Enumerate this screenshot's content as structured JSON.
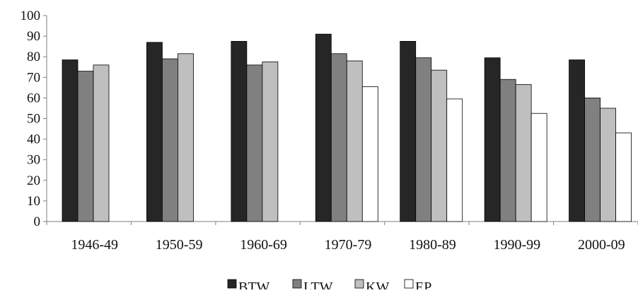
{
  "chart_data": {
    "type": "bar",
    "title": "",
    "xlabel": "",
    "ylabel": "",
    "ylim": [
      0,
      100
    ],
    "yticks": [
      0,
      10,
      20,
      30,
      40,
      50,
      60,
      70,
      80,
      90,
      100
    ],
    "grid": false,
    "legend_position": "bottom",
    "categories": [
      "1946-49",
      "1950-59",
      "1960-69",
      "1970-79",
      "1980-89",
      "1990-99",
      "2000-09"
    ],
    "series": [
      {
        "name": "BTW",
        "color": "#262626",
        "values": [
          78.5,
          87.0,
          87.5,
          91.0,
          87.5,
          79.5,
          78.5
        ]
      },
      {
        "name": "LTW",
        "color": "#808080",
        "values": [
          73.0,
          79.0,
          76.0,
          81.5,
          79.5,
          69.0,
          60.0
        ]
      },
      {
        "name": "KW",
        "color": "#bfbfbf",
        "values": [
          76.0,
          81.5,
          77.5,
          78.0,
          73.5,
          66.5,
          55.0
        ]
      },
      {
        "name": "EP",
        "color": "#ffffff",
        "values": [
          null,
          null,
          null,
          65.5,
          59.5,
          52.5,
          43.0
        ]
      }
    ]
  }
}
